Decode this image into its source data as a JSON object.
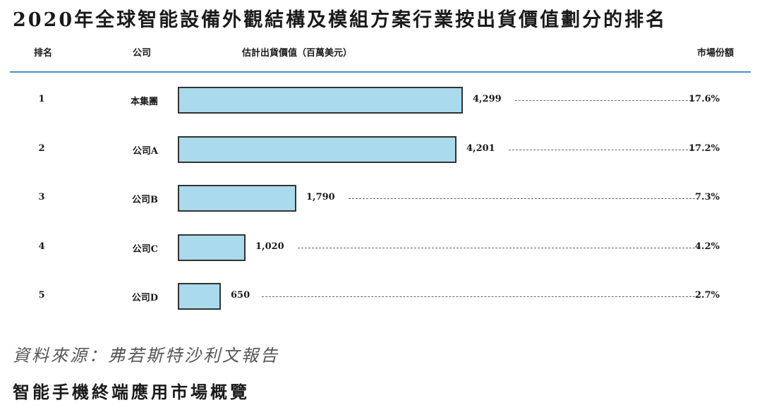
{
  "title": "2020年全球智能設備外觀結構及模組方案行業按出貨價值劃分的排名",
  "header": {
    "rank": "排名",
    "company": "公司",
    "value": "估計出貨價值（百萬美元）",
    "share": "市場份額"
  },
  "chart_data": {
    "type": "bar",
    "orientation": "horizontal",
    "title": "2020年全球智能設備外觀結構及模組方案行業按出貨價值劃分的排名",
    "xlabel": "估計出貨價值（百萬美元）",
    "categories": [
      "本集團",
      "公司A",
      "公司B",
      "公司C",
      "公司D"
    ],
    "values": [
      4299,
      4201,
      1790,
      1020,
      650
    ],
    "xlim": [
      0,
      4299
    ],
    "grid": false,
    "bar_color": "#a9dbec",
    "rows": [
      {
        "rank": "1",
        "company": "本集團",
        "value_label": "4,299",
        "share": "17.6%"
      },
      {
        "rank": "2",
        "company": "公司A",
        "value_label": "4,201",
        "share": "17.2%"
      },
      {
        "rank": "3",
        "company": "公司B",
        "value_label": "1,790",
        "share": "7.3%"
      },
      {
        "rank": "4",
        "company": "公司C",
        "value_label": "1,020",
        "share": "4.2%"
      },
      {
        "rank": "5",
        "company": "公司D",
        "value_label": "650",
        "share": "2.7%"
      }
    ]
  },
  "source": "資料來源：弗若斯特沙利文報告",
  "next_section": "智能手機終端應用市場概覽",
  "colors": {
    "accent_rule": "#4f8fc0",
    "bar_fill": "#a9dbec",
    "bar_border": "#333333"
  }
}
